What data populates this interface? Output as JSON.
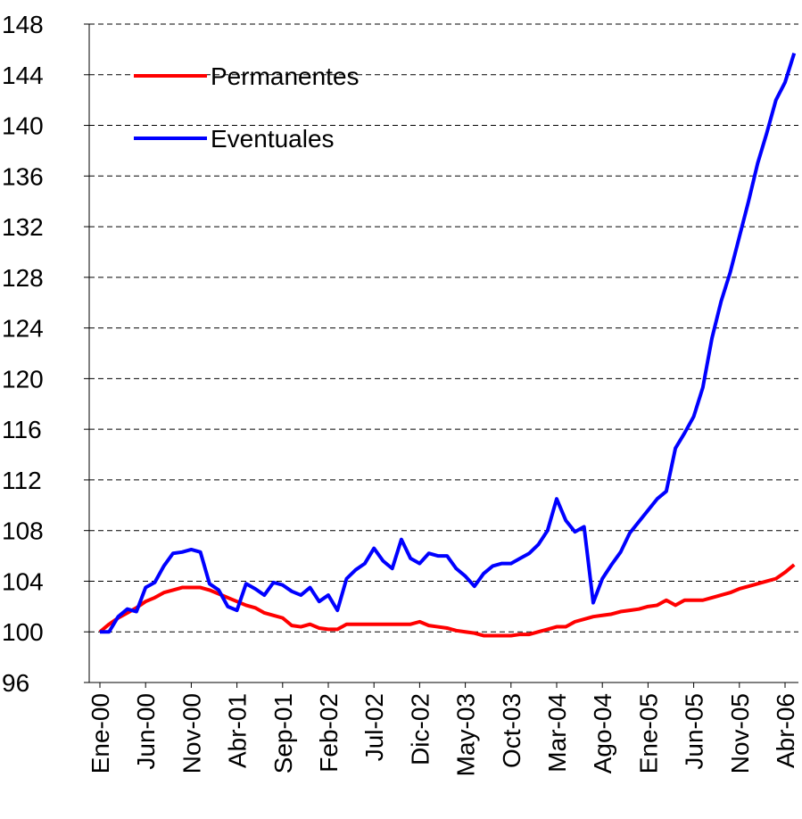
{
  "chart_data": {
    "type": "line",
    "categories": [
      "Ene-00",
      null,
      null,
      null,
      null,
      "Jun-00",
      null,
      null,
      null,
      null,
      "Nov-00",
      null,
      null,
      null,
      null,
      "Abr-01",
      null,
      null,
      null,
      null,
      "Sep-01",
      null,
      null,
      null,
      null,
      "Feb-02",
      null,
      null,
      null,
      null,
      "Jul-02",
      null,
      null,
      null,
      null,
      "Dic-02",
      null,
      null,
      null,
      null,
      "May-03",
      null,
      null,
      null,
      null,
      "Oct-03",
      null,
      null,
      null,
      null,
      "Mar-04",
      null,
      null,
      null,
      null,
      "Ago-04",
      null,
      null,
      null,
      null,
      "Ene-05",
      null,
      null,
      null,
      null,
      "Jun-05",
      null,
      null,
      null,
      null,
      "Nov-05",
      null,
      null,
      null,
      null,
      "Abr-06",
      null
    ],
    "series": [
      {
        "name": "Permanentes",
        "color": "#ff0000",
        "values": [
          100,
          100.6,
          101.1,
          101.5,
          101.9,
          102.4,
          102.7,
          103.1,
          103.3,
          103.5,
          103.5,
          103.5,
          103.3,
          103.0,
          102.7,
          102.4,
          102.1,
          101.9,
          101.5,
          101.3,
          101.1,
          100.5,
          100.4,
          100.6,
          100.3,
          100.2,
          100.2,
          100.6,
          100.6,
          100.6,
          100.6,
          100.6,
          100.6,
          100.6,
          100.6,
          100.8,
          100.5,
          100.4,
          100.3,
          100.1,
          100.0,
          99.9,
          99.7,
          99.7,
          99.7,
          99.7,
          99.8,
          99.8,
          100.0,
          100.2,
          100.4,
          100.4,
          100.8,
          101.0,
          101.2,
          101.3,
          101.4,
          101.6,
          101.7,
          101.8,
          102.0,
          102.1,
          102.5,
          102.1,
          102.5,
          102.5,
          102.5,
          102.7,
          102.9,
          103.1,
          103.4,
          103.6,
          103.8,
          104.0,
          104.2,
          104.7,
          105.3
        ]
      },
      {
        "name": "Eventuales",
        "color": "#0000ff",
        "values": [
          100,
          100,
          101.2,
          101.8,
          101.6,
          103.5,
          103.9,
          105.2,
          106.2,
          106.3,
          106.5,
          106.3,
          103.8,
          103.3,
          102.0,
          101.7,
          103.8,
          103.4,
          102.9,
          103.9,
          103.7,
          103.2,
          102.9,
          103.5,
          102.4,
          102.9,
          101.7,
          104.2,
          104.9,
          105.4,
          106.6,
          105.6,
          105.0,
          107.3,
          105.8,
          105.4,
          106.2,
          106.0,
          106.0,
          105.0,
          104.4,
          103.6,
          104.6,
          105.2,
          105.4,
          105.4,
          105.8,
          106.2,
          106.9,
          108.0,
          110.5,
          108.8,
          107.9,
          108.3,
          102.3,
          104.2,
          105.3,
          106.3,
          107.8,
          108.7,
          109.6,
          110.5,
          111.1,
          114.5,
          115.7,
          117.0,
          119.3,
          123.2,
          126.1,
          128.4,
          131.2,
          134.0,
          137.0,
          139.4,
          142.0,
          143.4,
          145.7
        ]
      }
    ],
    "ylim": [
      96,
      148
    ],
    "yticks": [
      96,
      100,
      104,
      108,
      112,
      116,
      120,
      124,
      128,
      132,
      136,
      140,
      144,
      148
    ],
    "grid": true,
    "legend": "top-left"
  }
}
